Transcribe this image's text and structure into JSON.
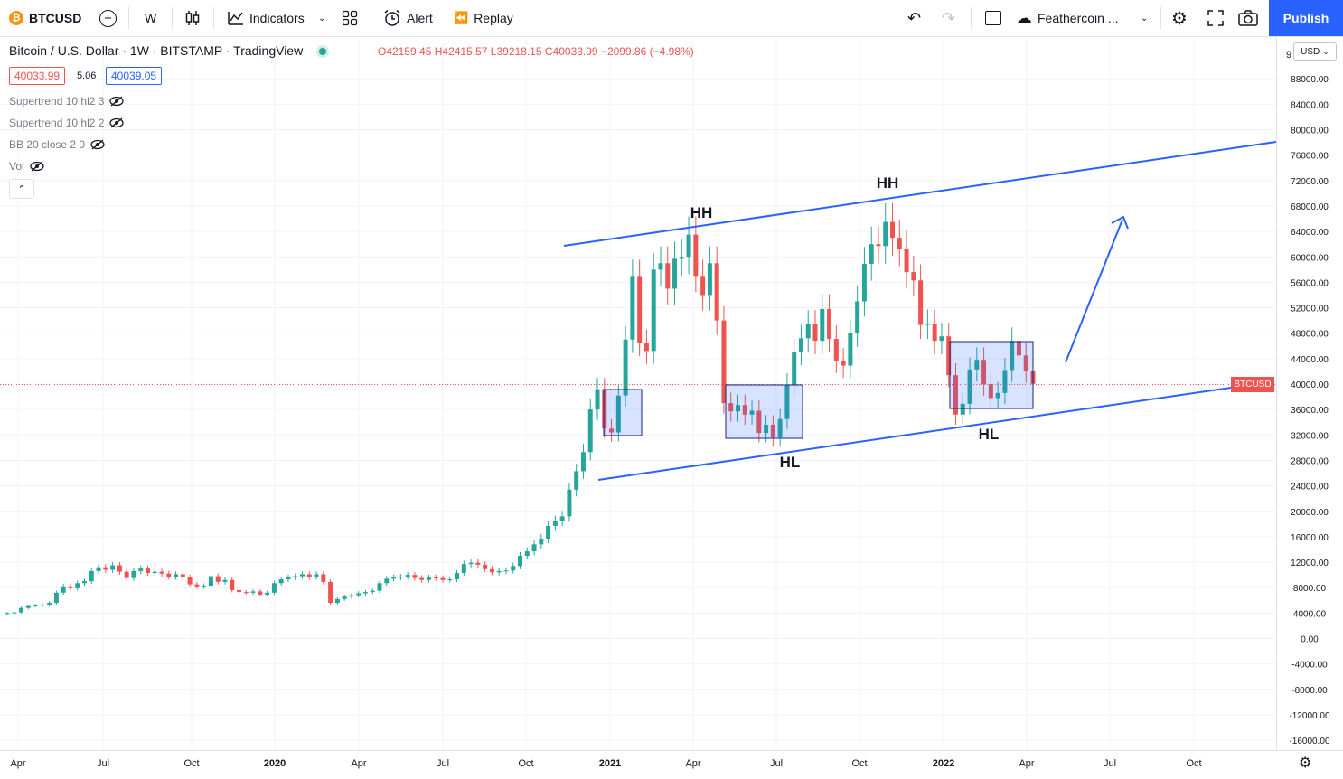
{
  "toolbar": {
    "symbol": "BTCUSD",
    "interval": "W",
    "indicators": "Indicators",
    "alert": "Alert",
    "replay": "Replay",
    "layout_name": "Feathercoin ...",
    "publish": "Publish"
  },
  "legend": {
    "title": "Bitcoin / U.S. Dollar · 1W · BITSTAMP · TradingView",
    "open": "O42159.45",
    "high": "H42415.57",
    "low": "L39218.15",
    "close": "C40033.99",
    "change": "−2099.86 (−4.98%)",
    "bid": "40033.99",
    "spread": "5.06",
    "ask": "40039.05",
    "indicators": [
      "Supertrend 10 hl2 3",
      "Supertrend 10 hl2 2",
      "BB 20 close 2 0",
      "Vol"
    ]
  },
  "annotations": {
    "hh1": "HH",
    "hh2": "HH",
    "hl1": "HL",
    "hl2": "HL"
  },
  "price_axis": {
    "currency": "USD",
    "top_partial": "9",
    "labels": [
      "88000.00",
      "84000.00",
      "80000.00",
      "76000.00",
      "72000.00",
      "68000.00",
      "64000.00",
      "60000.00",
      "56000.00",
      "52000.00",
      "48000.00",
      "44000.00",
      "40000.00",
      "36000.00",
      "32000.00",
      "28000.00",
      "24000.00",
      "20000.00",
      "16000.00",
      "12000.00",
      "8000.00",
      "4000.00",
      "0.00",
      "-4000.00",
      "-8000.00",
      "-12000.00",
      "-16000.00"
    ],
    "last_price_tag": "BTCUSD"
  },
  "time_axis": {
    "labels": [
      "Apr",
      "Jul",
      "Oct",
      "2020",
      "Apr",
      "Jul",
      "Oct",
      "2021",
      "Apr",
      "Jul",
      "Oct",
      "2022",
      "Apr",
      "Jul",
      "Oct"
    ]
  },
  "colors": {
    "up": "#26a69a",
    "down": "#ef5350",
    "drawing": "#2962ff",
    "accent": "#2962ff"
  },
  "chart_data": {
    "type": "candlestick",
    "interval": "1W",
    "y_range": [
      -16000,
      92000
    ],
    "approx_weekly_close": [
      4000,
      4100,
      4800,
      5100,
      5200,
      5300,
      5600,
      7200,
      8200,
      7900,
      8700,
      9000,
      10600,
      11200,
      10800,
      11500,
      10500,
      9500,
      10600,
      11000,
      10300,
      10500,
      10200,
      9700,
      10100,
      9600,
      8500,
      8200,
      8300,
      9800,
      8900,
      9200,
      7600,
      7300,
      7200,
      7400,
      6900,
      7200,
      8700,
      9300,
      9600,
      9800,
      10100,
      9700,
      10100,
      8900,
      5600,
      6200,
      6600,
      6800,
      7100,
      7300,
      7500,
      8700,
      9400,
      9600,
      9700,
      10000,
      9500,
      9200,
      9600,
      9500,
      9200,
      9300,
      10300,
      11700,
      11900,
      11600,
      10900,
      10400,
      10600,
      10700,
      11400,
      13000,
      13700,
      14800,
      15700,
      17700,
      18500,
      19200,
      23400,
      26300,
      29300,
      36000,
      39200,
      33000,
      32400,
      38200,
      47000,
      57000,
      46500,
      45200,
      58000,
      59000,
      55000,
      59700,
      60000,
      63500,
      57000,
      54000,
      59000,
      50000,
      37000,
      35700,
      36700,
      35200,
      35800,
      32300,
      33600,
      31600,
      34500,
      39900,
      45000,
      47200,
      49400,
      46800,
      51800,
      47100,
      43700,
      42900,
      48000,
      53000,
      58900,
      62000,
      61700,
      65500,
      63000,
      61300,
      57600,
      56300,
      49300,
      49500,
      46800,
      47500,
      41400,
      35200,
      36900,
      42300,
      43800,
      40000,
      37800,
      38600,
      42200,
      46800,
      44500,
      42100,
      40034
    ]
  }
}
